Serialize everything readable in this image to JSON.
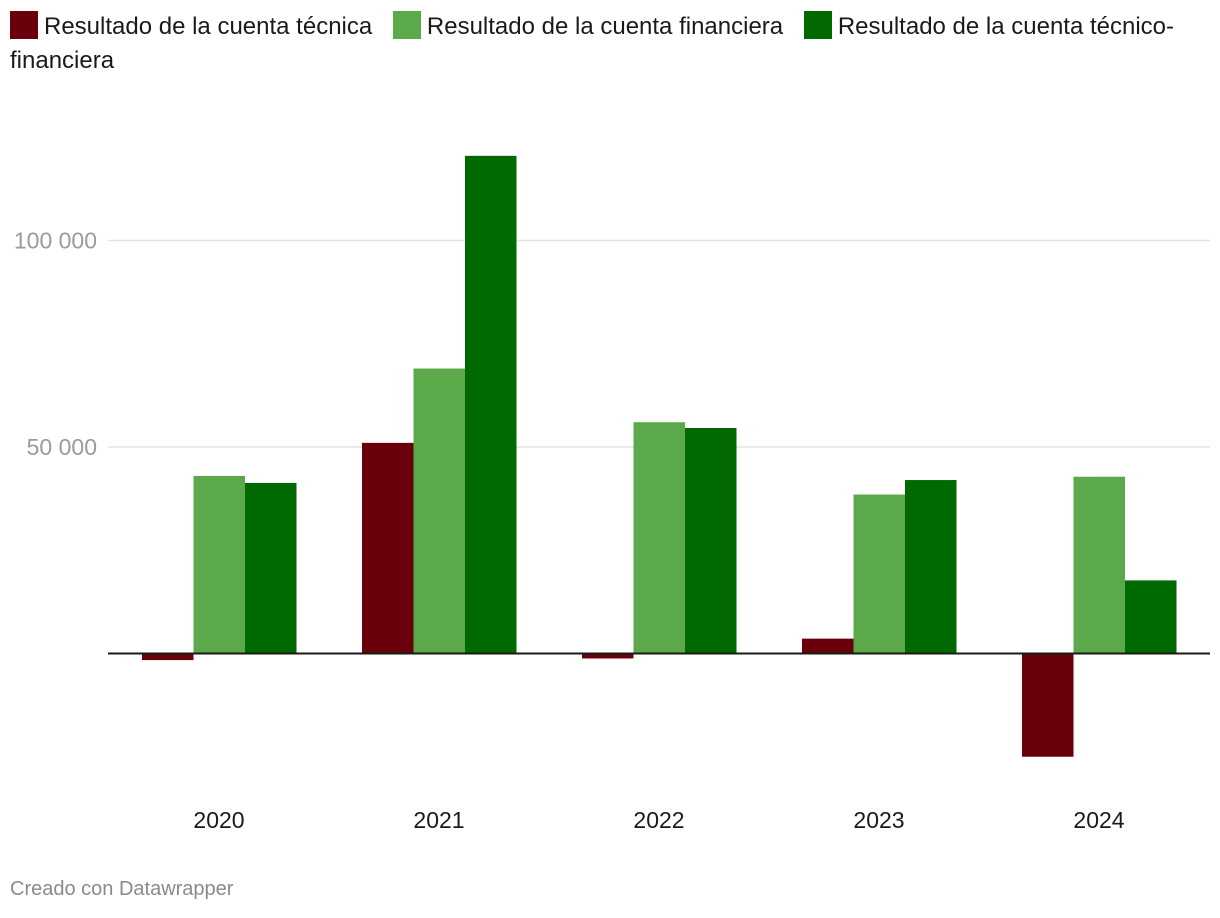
{
  "chart_data": {
    "type": "bar",
    "categories": [
      "2020",
      "2021",
      "2022",
      "2023",
      "2024"
    ],
    "series": [
      {
        "name": "Resultado de la cuenta técnica",
        "color": "#6a000c",
        "values": [
          -1600,
          51000,
          -1200,
          3600,
          -25000
        ]
      },
      {
        "name": "Resultado de la cuenta financiera",
        "color": "#5ba94a",
        "values": [
          43000,
          69000,
          56000,
          38500,
          42800
        ]
      },
      {
        "name": "Resultado de la cuenta técnico-financiera",
        "color": "#006a00",
        "values": [
          41300,
          120500,
          54600,
          42000,
          17700
        ]
      }
    ],
    "yticks": [
      {
        "value": 50000,
        "label": "50 000"
      },
      {
        "value": 100000,
        "label": "100 000"
      }
    ],
    "ylim": [
      -30000,
      125000
    ],
    "grid": true,
    "legend_position": "top"
  },
  "footer": {
    "credit": "Creado con Datawrapper"
  }
}
